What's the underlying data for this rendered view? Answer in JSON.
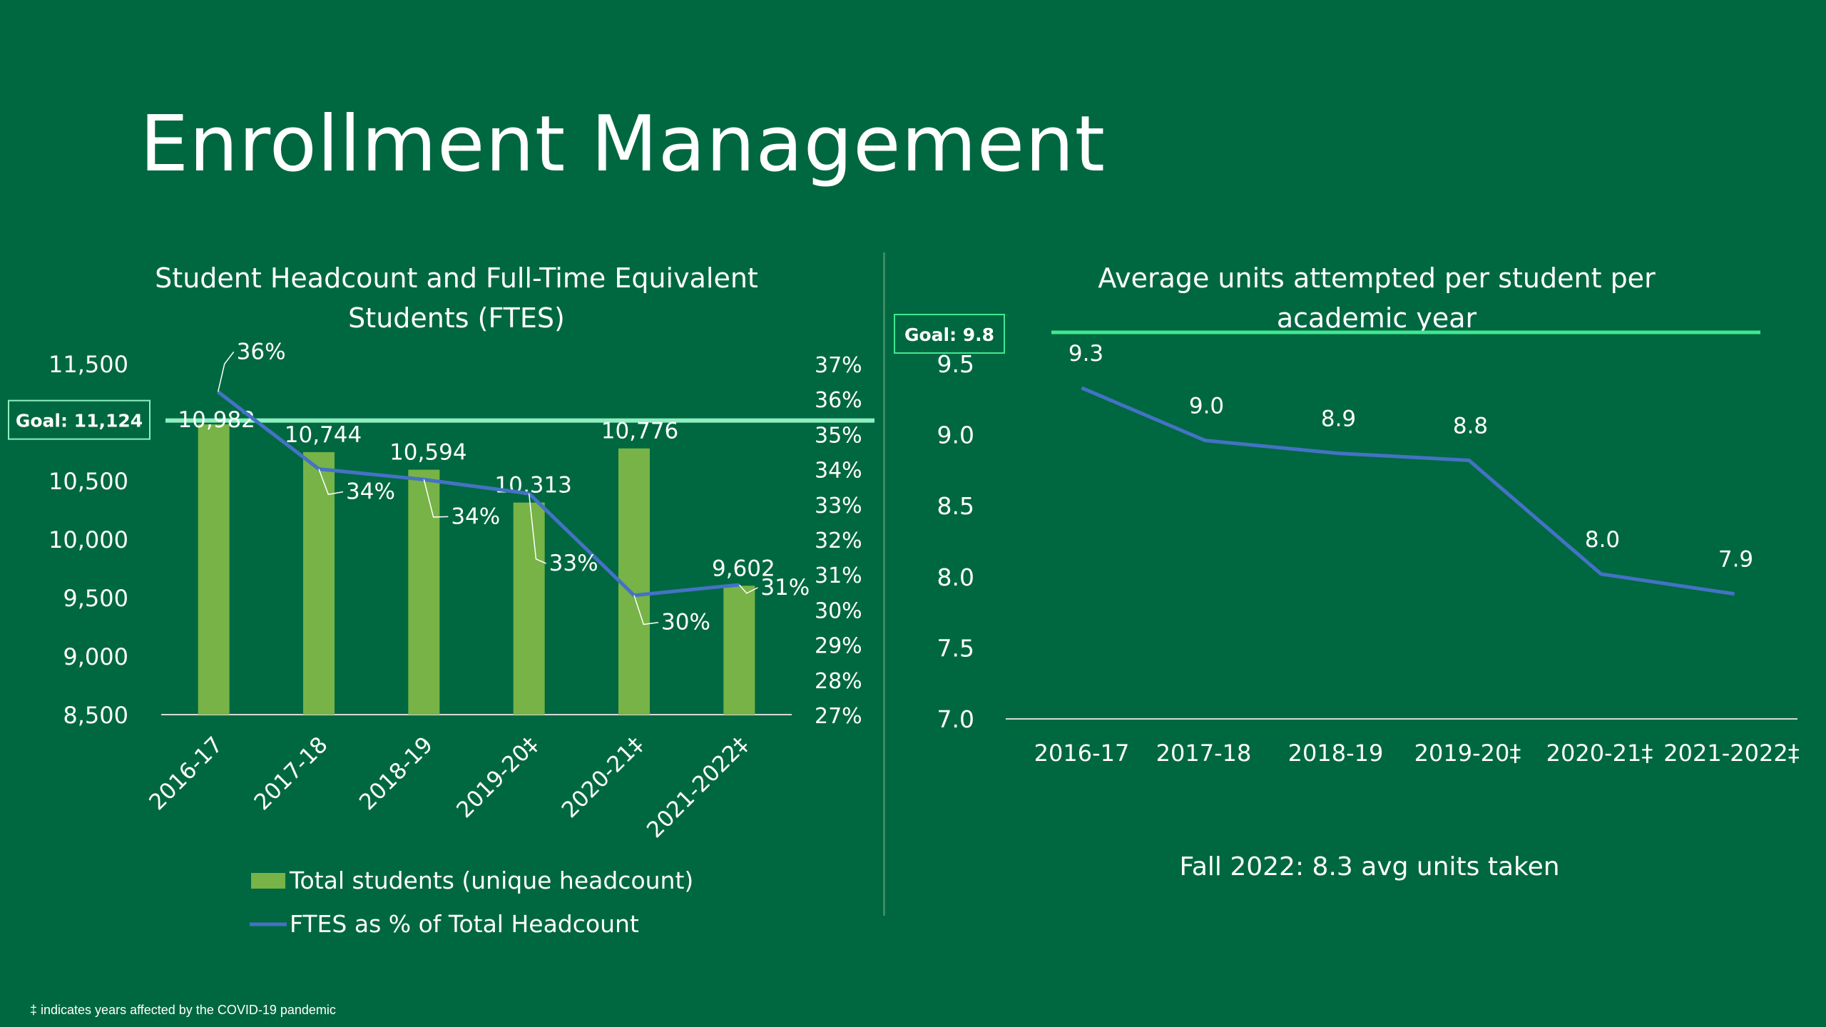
{
  "slide": {
    "title": "Enrollment Management",
    "footnote": "‡ indicates years affected by the COVID-19 pandemic"
  },
  "colors": {
    "background": "#006841",
    "bar": "#77b347",
    "line": "#4472c4",
    "goal_line": "#8fefc0",
    "goal_line_right": "#40e890"
  },
  "chart_data": [
    {
      "type": "bar",
      "title": "Student Headcount and Full-Time Equivalent Students (FTES)",
      "categories": [
        "2016-17",
        "2017-18",
        "2018-19",
        "2019-20‡",
        "2020-21‡",
        "2021-2022‡"
      ],
      "series": [
        {
          "name": "Total students (unique headcount)",
          "type": "bar",
          "axis": "left",
          "values": [
            10982,
            10744,
            10594,
            10313,
            10776,
            9602
          ],
          "labels": [
            "10,982",
            "10,744",
            "10,594",
            "10,313",
            "10,776",
            "9,602"
          ]
        },
        {
          "name": "FTES as % of Total Headcount",
          "type": "line",
          "axis": "right",
          "values": [
            36.2,
            34,
            33.7,
            33.3,
            30.4,
            30.7
          ],
          "labels": [
            "36%",
            "34%",
            "34%",
            "33%",
            "30%",
            "31%"
          ]
        }
      ],
      "ylim": [
        8500,
        11500
      ],
      "yticks": [
        "11,500",
        "11,000",
        "10,500",
        "10,000",
        "9,500",
        "9,000",
        "8,500"
      ],
      "y2lim": [
        27,
        37
      ],
      "y2ticks": [
        "37%",
        "36%",
        "35%",
        "34%",
        "33%",
        "32%",
        "31%",
        "30%",
        "29%",
        "28%",
        "27%"
      ],
      "goal": {
        "label": "Goal: 11,124",
        "value": 11124
      },
      "legend": "bottom"
    },
    {
      "type": "line",
      "title": "Average units attempted per student per academic year",
      "categories": [
        "2016-17",
        "2017-18",
        "2018-19",
        "2019-20‡",
        "2020-21‡",
        "2021-2022‡"
      ],
      "values": [
        9.33,
        8.96,
        8.87,
        8.82,
        8.02,
        7.88
      ],
      "labels": [
        "9.3",
        "9.0",
        "8.9",
        "8.8",
        "8.0",
        "7.9"
      ],
      "ylim": [
        7.0,
        9.5
      ],
      "yticks": [
        "9.5",
        "9.0",
        "8.5",
        "8.0",
        "7.5",
        "7.0"
      ],
      "goal": {
        "label": "Goal: 9.8",
        "value": 9.8
      },
      "note": "Fall 2022:  8.3 avg units taken"
    }
  ]
}
